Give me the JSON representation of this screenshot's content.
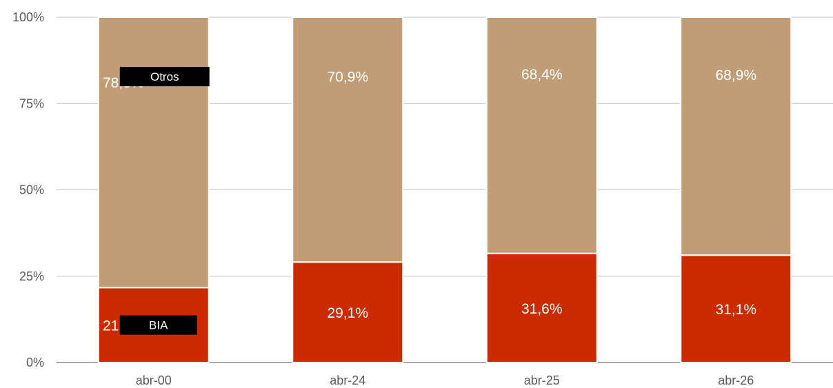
{
  "chart_data": {
    "type": "bar",
    "stacked": true,
    "percent_stacked": true,
    "categories": [
      "abr-00",
      "abr-24",
      "abr-25",
      "abr-26"
    ],
    "series": [
      {
        "name": "BIA",
        "values": [
          21.7,
          29.1,
          31.6,
          31.1
        ],
        "labels": [
          "21,7%",
          "29,1%",
          "31,6%",
          "31,1%"
        ],
        "color": "#CC2B00"
      },
      {
        "name": "Otros",
        "values": [
          78.3,
          70.9,
          68.4,
          68.9
        ],
        "labels": [
          "78,3%",
          "70,9%",
          "68,4%",
          "68,9%"
        ],
        "color": "#C19D77"
      }
    ],
    "y_ticks": [
      "0%",
      "25%",
      "50%",
      "75%",
      "100%"
    ],
    "ylim": [
      0,
      100
    ],
    "grid": true,
    "legend": "inline labels next to first bar"
  }
}
